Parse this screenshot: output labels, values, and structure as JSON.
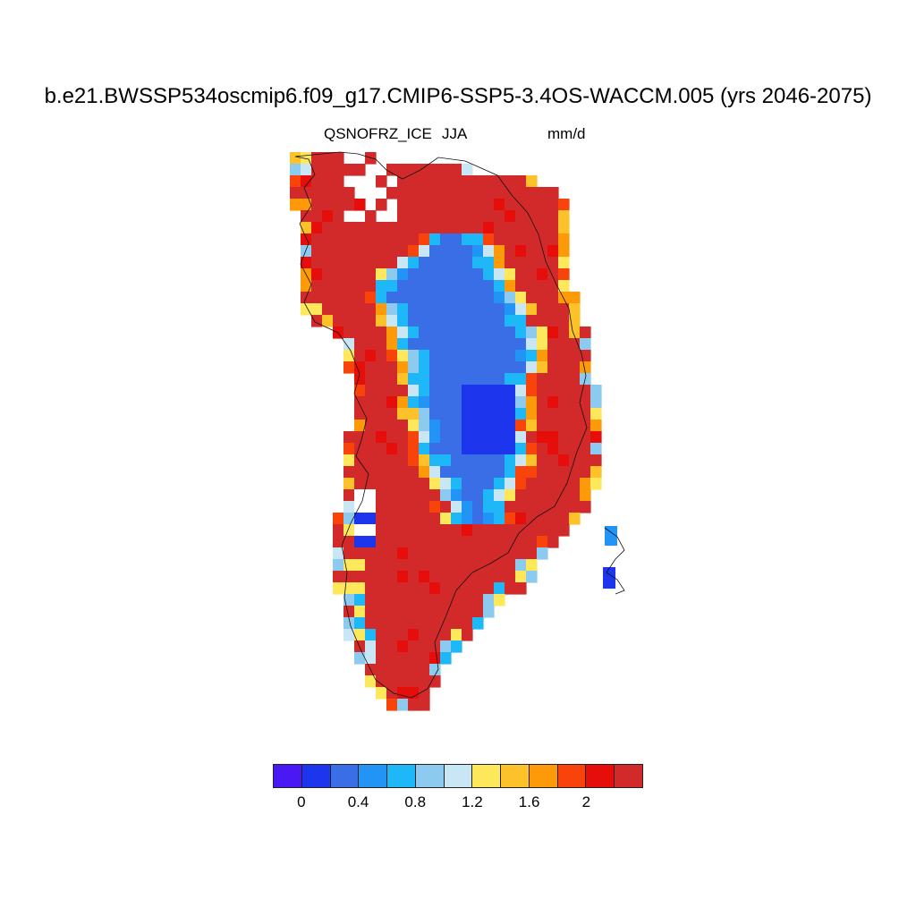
{
  "title": "b.e21.BWSSP534oscmip6.f09_g17.CMIP6-SSP5-3.4OS-WACCM.005 (yrs 2046-2075)",
  "subtitle": {
    "variable": "QSNOFRZ_ICE",
    "season": "JJA",
    "units": "mm/d"
  },
  "colorbar": {
    "colors": [
      "#4a18f2",
      "#1e35ee",
      "#3a6ee6",
      "#2294f5",
      "#1eb7f7",
      "#8ccbef",
      "#c9e6f5",
      "#fde85c",
      "#fdc22a",
      "#fd9a0a",
      "#f8440a",
      "#e60e0a",
      "#d22a2a"
    ],
    "tick_labels": [
      "0",
      "0.4",
      "0.8",
      "1.2",
      "1.6",
      "2"
    ]
  },
  "map": {
    "region": "Greenland",
    "field": "QSNOFRZ_ICE",
    "legend_levels": [
      0,
      0.2,
      0.4,
      0.6,
      0.8,
      1.0,
      1.2,
      1.4,
      1.6,
      1.8,
      2.0,
      2.2
    ]
  }
}
